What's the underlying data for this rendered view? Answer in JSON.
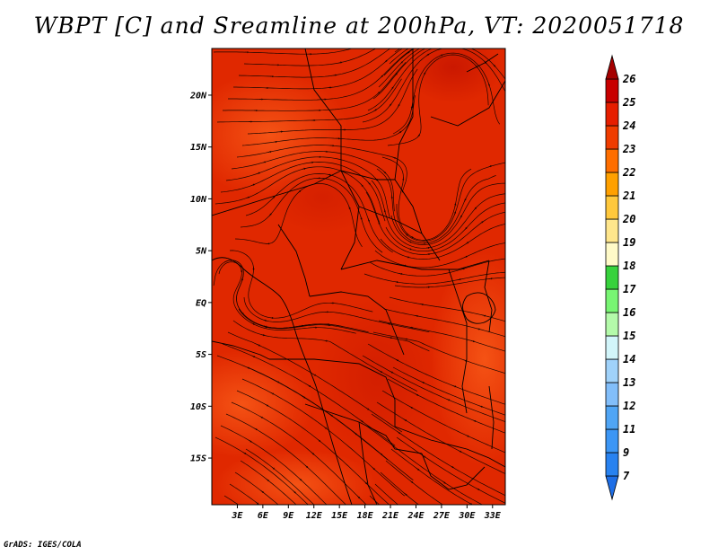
{
  "title": "WBPT [C] and Sreamline at 200hPa, VT: 2020051718",
  "footer": "GrADS: IGES/COLA",
  "map": {
    "lat_labels": [
      "20N",
      "15N",
      "10N",
      "5N",
      "EQ",
      "5S",
      "10S",
      "15S"
    ],
    "lat_values": [
      20,
      15,
      10,
      5,
      0,
      -5,
      -10,
      -15
    ],
    "lon_labels": [
      "3E",
      "6E",
      "9E",
      "12E",
      "15E",
      "18E",
      "21E",
      "24E",
      "27E",
      "30E",
      "33E"
    ],
    "lon_values": [
      3,
      6,
      9,
      12,
      15,
      18,
      21,
      24,
      27,
      30,
      33
    ],
    "lon_range": [
      0,
      34.5
    ],
    "lat_range": [
      -19.5,
      24.5
    ]
  },
  "colorbar": {
    "labels": [
      "7",
      "9",
      "11",
      "12",
      "13",
      "14",
      "15",
      "16",
      "17",
      "18",
      "19",
      "20",
      "21",
      "22",
      "23",
      "24",
      "25",
      "26"
    ],
    "colors": [
      "#1e6ee6",
      "#2882f0",
      "#3c96f5",
      "#50a5f5",
      "#82beFa",
      "#a0d2fa",
      "#d2f5fa",
      "#b4faaa",
      "#78f573",
      "#37d23c",
      "#fffac8",
      "#ffe68c",
      "#ffc83c",
      "#ffa000",
      "#ff6e00",
      "#f03c00",
      "#e61e00",
      "#c80000",
      "#a50000"
    ]
  },
  "colors": {
    "field_base": "#e02800",
    "field_warm": "#f04610",
    "field_hot": "#c81600",
    "streamline": "#1a0500",
    "border": "#000000"
  }
}
